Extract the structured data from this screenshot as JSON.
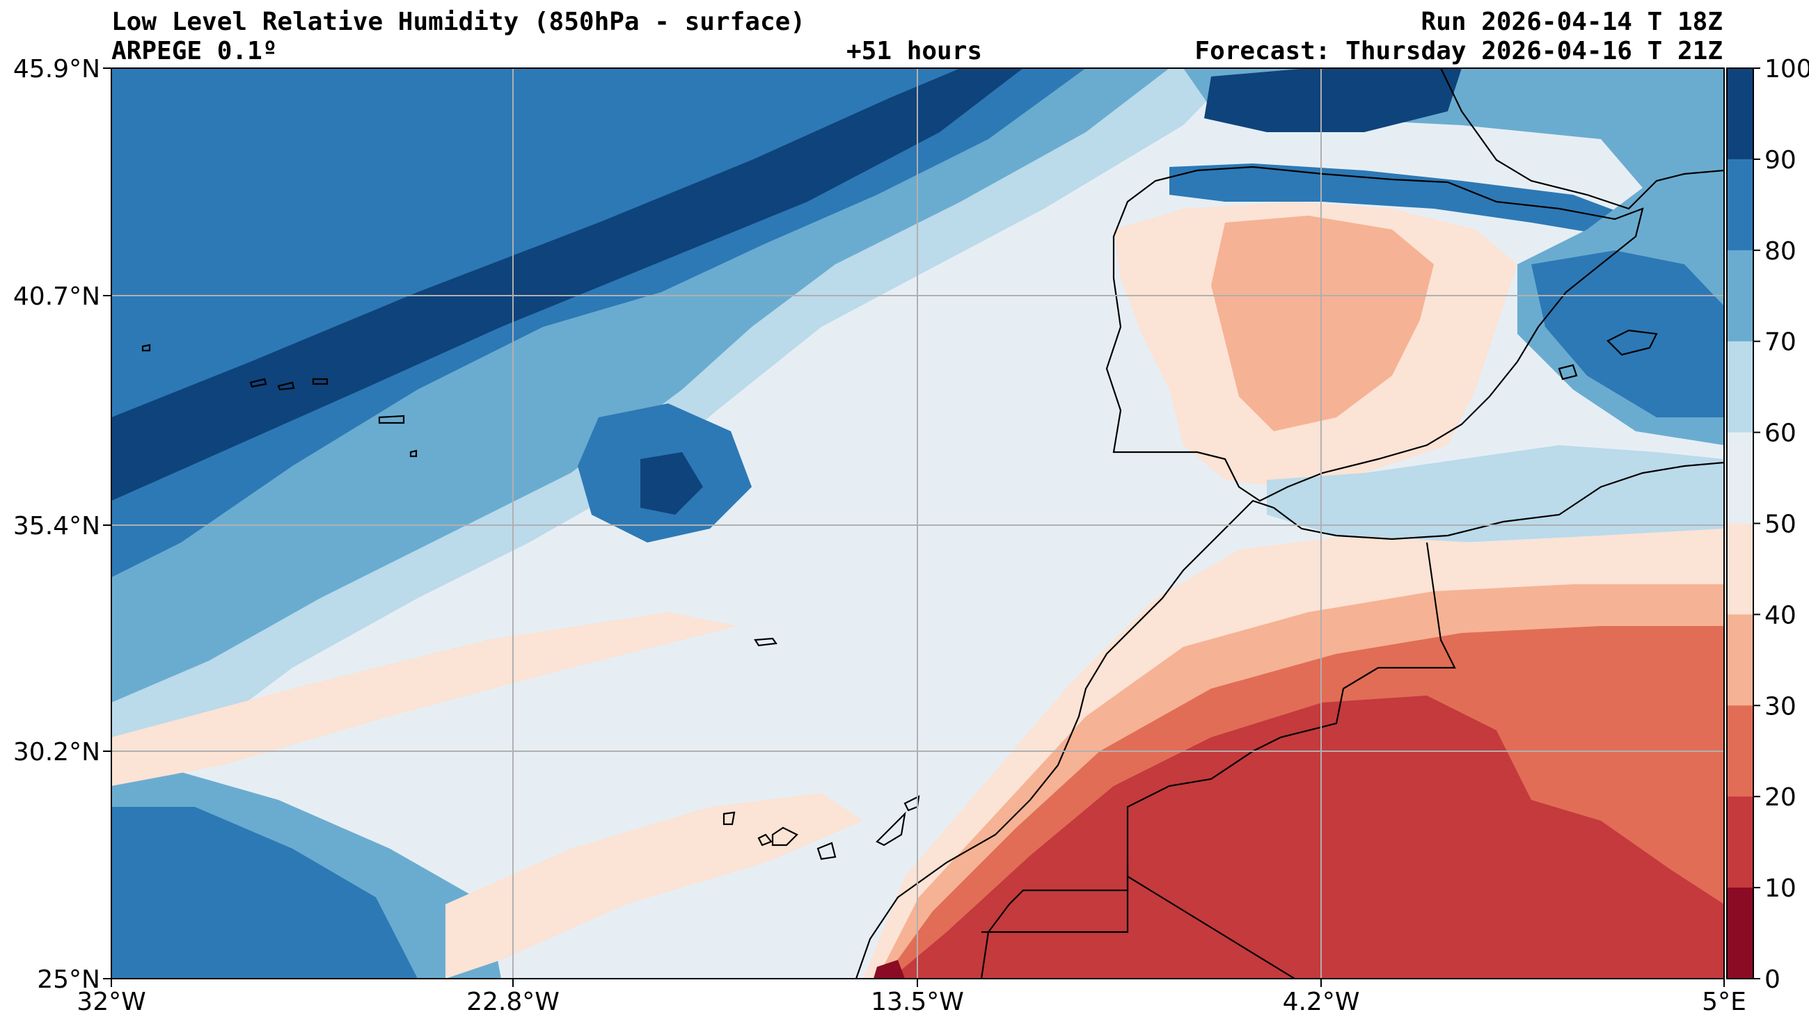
{
  "header": {
    "title": "Low Level Relative Humidity (850hPa - surface)",
    "model": "ARPEGE 0.1º",
    "lead_time": "+51 hours",
    "run": "Run 2026-04-14 T 18Z",
    "forecast": "Forecast: Thursday 2026-04-16 T 21Z"
  },
  "axes": {
    "y_ticks": [
      "45.9°N",
      "40.7°N",
      "35.4°N",
      "30.2°N",
      "25°N"
    ],
    "x_ticks": [
      "32°W",
      "22.8°W",
      "13.5°W",
      "4.2°W",
      "5°E"
    ]
  },
  "colorbar": {
    "ticks": [
      "100",
      "90",
      "80",
      "70",
      "60",
      "50",
      "40",
      "30",
      "20",
      "10",
      "0"
    ],
    "colors": [
      "#0f437b",
      "#2d79b5",
      "#6aacd0",
      "#bbdaea",
      "#e6eef4",
      "#fbe3d5",
      "#f6b294",
      "#e16d56",
      "#c43a3d",
      "#8b0b24"
    ]
  },
  "palette": {
    "h90": "#0f437b",
    "h80": "#2d79b5",
    "h70": "#6aacd0",
    "h60": "#bbdaea",
    "h50": "#e6eef4",
    "h40": "#fbe3d5",
    "h30": "#f6b294",
    "h20": "#e16d56",
    "h10": "#c43a3d",
    "h0": "#8b0b24",
    "grid": "#b0b0b0"
  }
}
